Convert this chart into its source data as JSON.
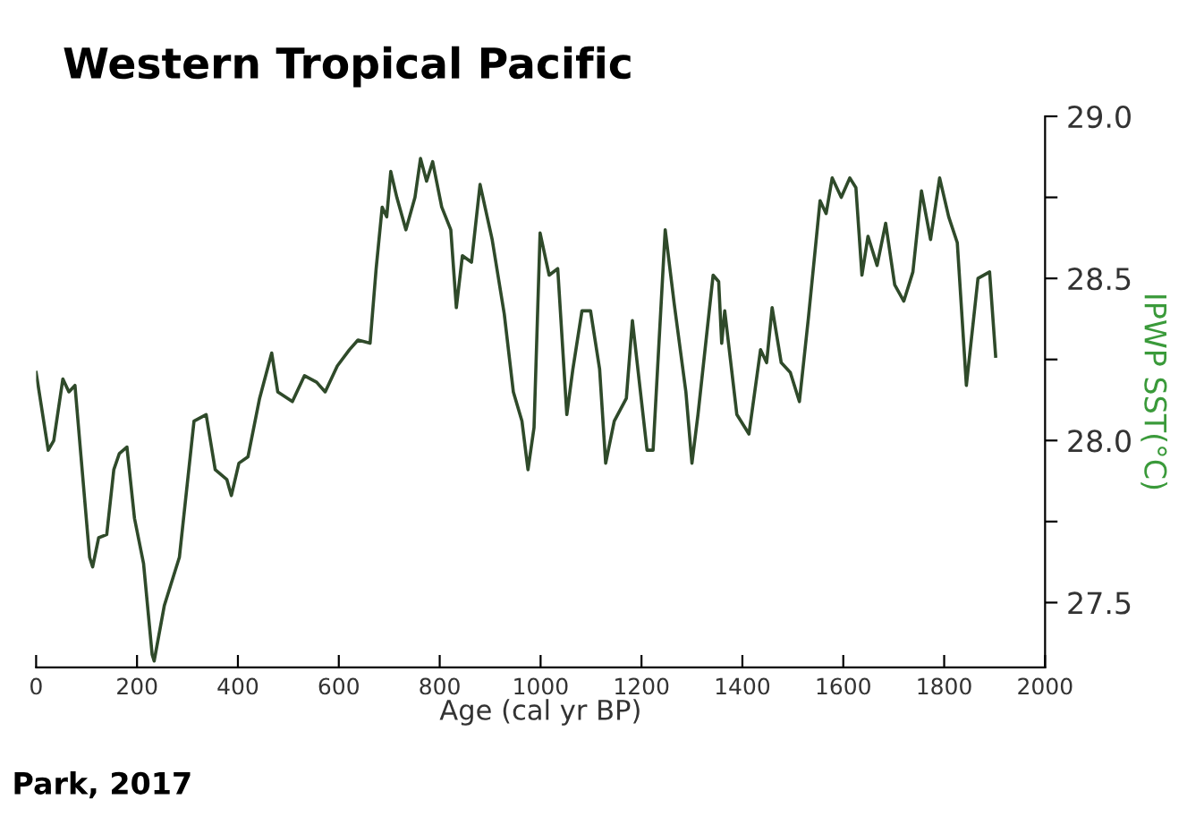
{
  "chart_data": {
    "type": "line",
    "title": "Western Tropical Pacific",
    "xlabel": "Age (cal yr BP)",
    "ylabel": "IPWP SST(°C)",
    "annotations": [
      "Park, 2017"
    ],
    "xlim": [
      0,
      2000
    ],
    "xticks": [
      0,
      200,
      400,
      600,
      800,
      1000,
      1200,
      1400,
      1600,
      1800,
      2000
    ],
    "ylim": [
      27.3,
      29.0
    ],
    "yticks": [
      {
        "value": 27.5,
        "label": "27.5"
      },
      {
        "value": 27.75,
        "label": null
      },
      {
        "value": 28.0,
        "label": "28.0"
      },
      {
        "value": 28.25,
        "label": null
      },
      {
        "value": 28.5,
        "label": "28.5"
      },
      {
        "value": 28.75,
        "label": null
      },
      {
        "value": 29.0,
        "label": "29.0"
      }
    ],
    "grid": false,
    "legend": false,
    "marker": "none",
    "line_style": "solid",
    "series": [
      {
        "color": "#2f4a2a",
        "x": [
          0,
          24,
          35,
          53,
          65,
          77,
          89,
          106,
          112,
          124,
          140,
          154,
          165,
          180,
          195,
          213,
          230,
          234,
          254,
          266,
          284,
          313,
          337,
          355,
          378,
          387,
          402,
          420,
          443,
          467,
          479,
          508,
          532,
          556,
          573,
          597,
          621,
          638,
          662,
          674,
          686,
          695,
          703,
          715,
          733,
          751,
          762,
          774,
          786,
          804,
          822,
          833,
          845,
          863,
          880,
          904,
          928,
          946,
          963,
          975,
          987,
          999,
          1017,
          1034,
          1052,
          1064,
          1082,
          1099,
          1117,
          1129,
          1146,
          1170,
          1182,
          1211,
          1223,
          1247,
          1265,
          1288,
          1300,
          1312,
          1342,
          1353,
          1359,
          1365,
          1389,
          1413,
          1436,
          1448,
          1459,
          1477,
          1495,
          1513,
          1531,
          1554,
          1566,
          1578,
          1596,
          1613,
          1625,
          1637,
          1649,
          1667,
          1684,
          1702,
          1720,
          1738,
          1755,
          1773,
          1791,
          1809,
          1826,
          1844,
          1867,
          1890,
          1902
        ],
        "values": [
          28.21,
          27.97,
          28.0,
          28.19,
          28.15,
          28.17,
          27.95,
          27.64,
          27.61,
          27.7,
          27.71,
          27.91,
          27.96,
          27.98,
          27.76,
          27.62,
          27.34,
          27.32,
          27.49,
          27.55,
          27.64,
          28.06,
          28.08,
          27.91,
          27.88,
          27.83,
          27.93,
          27.95,
          28.13,
          28.27,
          28.15,
          28.12,
          28.2,
          28.18,
          28.15,
          28.23,
          28.28,
          28.31,
          28.3,
          28.53,
          28.72,
          28.69,
          28.83,
          28.75,
          28.65,
          28.75,
          28.87,
          28.8,
          28.86,
          28.72,
          28.65,
          28.41,
          28.57,
          28.55,
          28.79,
          28.62,
          28.39,
          28.15,
          28.06,
          27.91,
          28.04,
          28.64,
          28.51,
          28.53,
          28.08,
          28.22,
          28.4,
          28.4,
          28.22,
          27.93,
          28.06,
          28.13,
          28.37,
          27.97,
          27.97,
          28.65,
          28.42,
          28.15,
          27.93,
          28.08,
          28.51,
          28.49,
          28.3,
          28.4,
          28.08,
          28.02,
          28.28,
          28.24,
          28.41,
          28.24,
          28.21,
          28.12,
          28.38,
          28.74,
          28.7,
          28.81,
          28.75,
          28.81,
          28.78,
          28.51,
          28.63,
          28.54,
          28.67,
          28.48,
          28.43,
          28.52,
          28.77,
          28.62,
          28.81,
          28.69,
          28.61,
          28.17,
          28.5,
          28.52,
          28.26
        ]
      }
    ]
  }
}
